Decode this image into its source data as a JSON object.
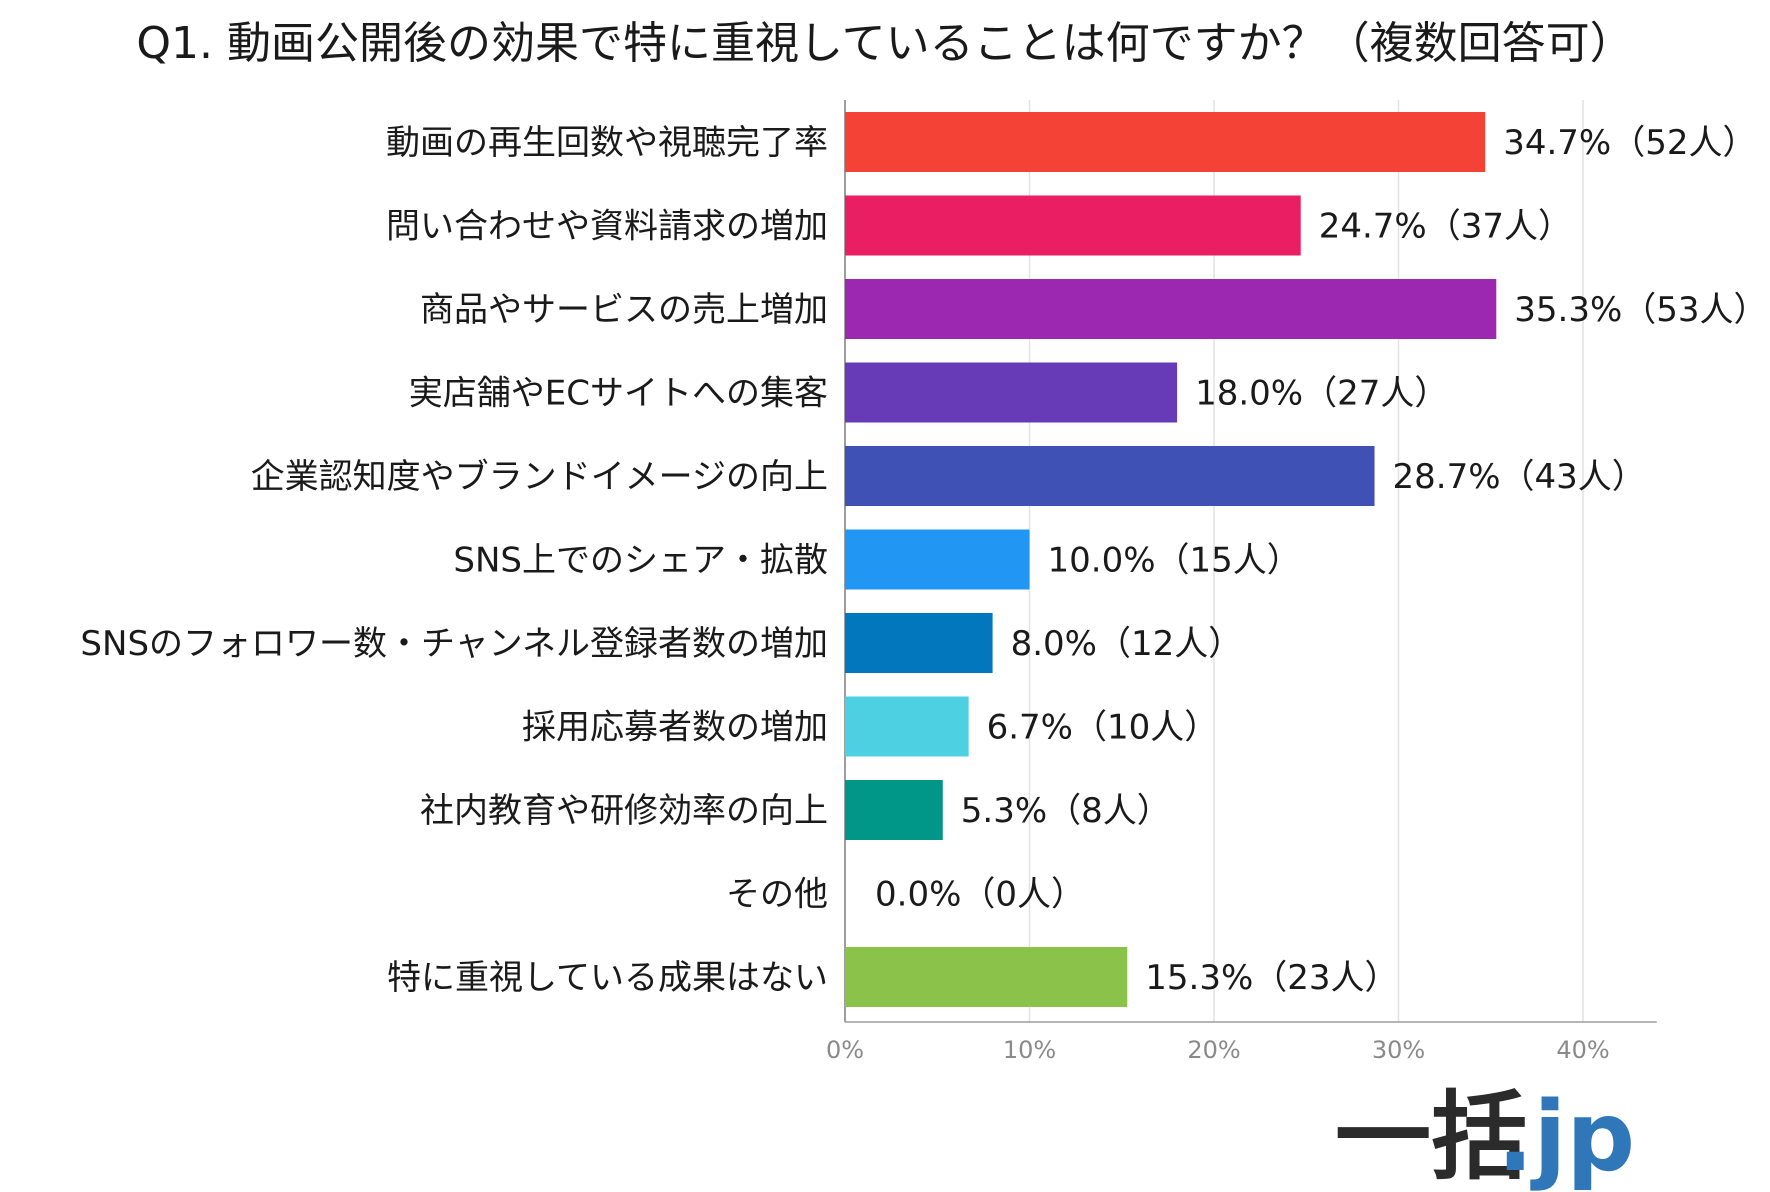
{
  "chart_data": {
    "type": "bar",
    "orientation": "horizontal",
    "title": "Q1. 動画公開後の効果で特に重視していることは何ですか？（複数回答可）",
    "xlabel": "",
    "ylabel": "",
    "xlim": [
      0,
      44
    ],
    "grid": true,
    "ticks": [
      "0%",
      "10%",
      "20%",
      "30%",
      "40%"
    ],
    "tick_values": [
      0,
      10,
      20,
      30,
      40
    ],
    "categories": [
      "動画の再生回数や視聴完了率",
      "問い合わせや資料請求の増加",
      "商品やサービスの売上増加",
      "実店舗やECサイトへの集客",
      "企業認知度やブランドイメージの向上",
      "SNS上でのシェア・拡散",
      "SNSのフォロワー数・チャンネル登録者数の増加",
      "採用応募者数の増加",
      "社内教育や研修効率の向上",
      "その他",
      "特に重視している成果はない"
    ],
    "values": [
      34.7,
      24.7,
      35.3,
      18.0,
      28.7,
      10.0,
      8.0,
      6.7,
      5.3,
      0.0,
      15.3
    ],
    "data_labels": [
      "34.7%（52人）",
      "24.7%（37人）",
      "35.3%（53人）",
      "18.0%（27人）",
      "28.7%（43人）",
      "10.0%（15人）",
      "8.0%（12人）",
      "6.7%（10人）",
      "5.3%（8人）",
      "0.0%（0人）",
      "15.3%（23人）"
    ],
    "colors": [
      "#f44336",
      "#e91e63",
      "#9c27b0",
      "#673ab7",
      "#3f51b5",
      "#2196f3",
      "#0277bd",
      "#4dd0e1",
      "#009688",
      "#9e9e9e",
      "#8bc34a"
    ]
  },
  "logo": {
    "main": "一括",
    "sub": ".jp"
  }
}
